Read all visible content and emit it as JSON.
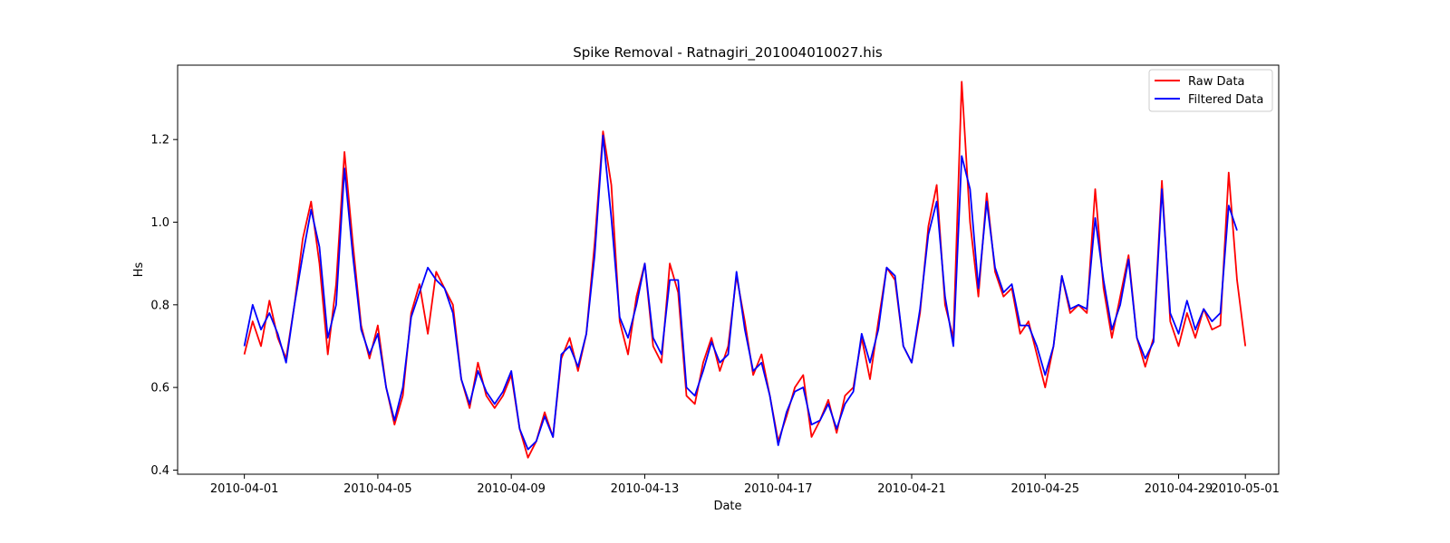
{
  "chart_data": {
    "type": "line",
    "title": "Spike Removal - Ratnagiri_201004010027.his",
    "xlabel": "Date",
    "ylabel": "Hs",
    "xlim": [
      "2010-03-30",
      "2010-05-02"
    ],
    "ylim": [
      0.39,
      1.38
    ],
    "x_ticks": [
      "2010-04-01",
      "2010-04-05",
      "2010-04-09",
      "2010-04-13",
      "2010-04-17",
      "2010-04-21",
      "2010-04-25",
      "2010-04-29",
      "2010-05-01"
    ],
    "y_ticks": [
      "0.4",
      "0.6",
      "0.8",
      "1.0",
      "1.2"
    ],
    "legend_position": "upper-right",
    "grid": false,
    "series": [
      {
        "name": "Raw Data",
        "color": "#ff0000",
        "points": [
          [
            "2010-04-01 00:00",
            0.68
          ],
          [
            "2010-04-01 06:00",
            0.76
          ],
          [
            "2010-04-01 12:00",
            0.7
          ],
          [
            "2010-04-01 18:00",
            0.81
          ],
          [
            "2010-04-02 00:00",
            0.72
          ],
          [
            "2010-04-02 06:00",
            0.67
          ],
          [
            "2010-04-02 12:00",
            0.8
          ],
          [
            "2010-04-02 18:00",
            0.96
          ],
          [
            "2010-04-03 00:00",
            1.05
          ],
          [
            "2010-04-03 06:00",
            0.9
          ],
          [
            "2010-04-03 12:00",
            0.68
          ],
          [
            "2010-04-03 18:00",
            0.85
          ],
          [
            "2010-04-04 00:00",
            1.17
          ],
          [
            "2010-04-04 06:00",
            0.95
          ],
          [
            "2010-04-04 12:00",
            0.75
          ],
          [
            "2010-04-04 18:00",
            0.67
          ],
          [
            "2010-04-05 00:00",
            0.75
          ],
          [
            "2010-04-05 06:00",
            0.6
          ],
          [
            "2010-04-05 12:00",
            0.51
          ],
          [
            "2010-04-05 18:00",
            0.58
          ],
          [
            "2010-04-06 00:00",
            0.78
          ],
          [
            "2010-04-06 06:00",
            0.85
          ],
          [
            "2010-04-06 12:00",
            0.73
          ],
          [
            "2010-04-06 18:00",
            0.88
          ],
          [
            "2010-04-07 00:00",
            0.84
          ],
          [
            "2010-04-07 06:00",
            0.8
          ],
          [
            "2010-04-07 12:00",
            0.62
          ],
          [
            "2010-04-07 18:00",
            0.55
          ],
          [
            "2010-04-08 00:00",
            0.66
          ],
          [
            "2010-04-08 06:00",
            0.58
          ],
          [
            "2010-04-08 12:00",
            0.55
          ],
          [
            "2010-04-08 18:00",
            0.58
          ],
          [
            "2010-04-09 00:00",
            0.63
          ],
          [
            "2010-04-09 06:00",
            0.5
          ],
          [
            "2010-04-09 12:00",
            0.43
          ],
          [
            "2010-04-09 18:00",
            0.47
          ],
          [
            "2010-04-10 00:00",
            0.54
          ],
          [
            "2010-04-10 06:00",
            0.48
          ],
          [
            "2010-04-10 12:00",
            0.67
          ],
          [
            "2010-04-10 18:00",
            0.72
          ],
          [
            "2010-04-11 00:00",
            0.64
          ],
          [
            "2010-04-11 06:00",
            0.73
          ],
          [
            "2010-04-11 12:00",
            0.95
          ],
          [
            "2010-04-11 18:00",
            1.22
          ],
          [
            "2010-04-12 00:00",
            1.09
          ],
          [
            "2010-04-12 06:00",
            0.76
          ],
          [
            "2010-04-12 12:00",
            0.68
          ],
          [
            "2010-04-12 18:00",
            0.82
          ],
          [
            "2010-04-13 00:00",
            0.9
          ],
          [
            "2010-04-13 06:00",
            0.7
          ],
          [
            "2010-04-13 12:00",
            0.66
          ],
          [
            "2010-04-13 18:00",
            0.9
          ],
          [
            "2010-04-14 00:00",
            0.83
          ],
          [
            "2010-04-14 06:00",
            0.58
          ],
          [
            "2010-04-14 12:00",
            0.56
          ],
          [
            "2010-04-14 18:00",
            0.66
          ],
          [
            "2010-04-15 00:00",
            0.72
          ],
          [
            "2010-04-15 06:00",
            0.64
          ],
          [
            "2010-04-15 12:00",
            0.7
          ],
          [
            "2010-04-15 18:00",
            0.87
          ],
          [
            "2010-04-16 00:00",
            0.76
          ],
          [
            "2010-04-16 06:00",
            0.63
          ],
          [
            "2010-04-16 12:00",
            0.68
          ],
          [
            "2010-04-16 18:00",
            0.58
          ],
          [
            "2010-04-17 00:00",
            0.47
          ],
          [
            "2010-04-17 06:00",
            0.53
          ],
          [
            "2010-04-17 12:00",
            0.6
          ],
          [
            "2010-04-17 18:00",
            0.63
          ],
          [
            "2010-04-18 00:00",
            0.48
          ],
          [
            "2010-04-18 06:00",
            0.52
          ],
          [
            "2010-04-18 12:00",
            0.57
          ],
          [
            "2010-04-18 18:00",
            0.49
          ],
          [
            "2010-04-19 00:00",
            0.58
          ],
          [
            "2010-04-19 06:00",
            0.6
          ],
          [
            "2010-04-19 12:00",
            0.72
          ],
          [
            "2010-04-19 18:00",
            0.62
          ],
          [
            "2010-04-20 00:00",
            0.76
          ],
          [
            "2010-04-20 06:00",
            0.89
          ],
          [
            "2010-04-20 12:00",
            0.86
          ],
          [
            "2010-04-20 18:00",
            0.7
          ],
          [
            "2010-04-21 00:00",
            0.66
          ],
          [
            "2010-04-21 06:00",
            0.78
          ],
          [
            "2010-04-21 12:00",
            0.99
          ],
          [
            "2010-04-21 18:00",
            1.09
          ],
          [
            "2010-04-22 00:00",
            0.8
          ],
          [
            "2010-04-22 06:00",
            0.72
          ],
          [
            "2010-04-22 12:00",
            1.34
          ],
          [
            "2010-04-22 18:00",
            1.0
          ],
          [
            "2010-04-23 00:00",
            0.82
          ],
          [
            "2010-04-23 06:00",
            1.07
          ],
          [
            "2010-04-23 12:00",
            0.88
          ],
          [
            "2010-04-23 18:00",
            0.82
          ],
          [
            "2010-04-24 00:00",
            0.84
          ],
          [
            "2010-04-24 06:00",
            0.73
          ],
          [
            "2010-04-24 12:00",
            0.76
          ],
          [
            "2010-04-24 18:00",
            0.68
          ],
          [
            "2010-04-25 00:00",
            0.6
          ],
          [
            "2010-04-25 06:00",
            0.7
          ],
          [
            "2010-04-25 12:00",
            0.87
          ],
          [
            "2010-04-25 18:00",
            0.78
          ],
          [
            "2010-04-26 00:00",
            0.8
          ],
          [
            "2010-04-26 06:00",
            0.78
          ],
          [
            "2010-04-26 12:00",
            1.08
          ],
          [
            "2010-04-26 18:00",
            0.84
          ],
          [
            "2010-04-27 00:00",
            0.72
          ],
          [
            "2010-04-27 06:00",
            0.82
          ],
          [
            "2010-04-27 12:00",
            0.92
          ],
          [
            "2010-04-27 18:00",
            0.72
          ],
          [
            "2010-04-28 00:00",
            0.65
          ],
          [
            "2010-04-28 06:00",
            0.72
          ],
          [
            "2010-04-28 12:00",
            1.1
          ],
          [
            "2010-04-28 18:00",
            0.76
          ],
          [
            "2010-04-29 00:00",
            0.7
          ],
          [
            "2010-04-29 06:00",
            0.78
          ],
          [
            "2010-04-29 12:00",
            0.72
          ],
          [
            "2010-04-29 18:00",
            0.79
          ],
          [
            "2010-04-30 00:00",
            0.74
          ],
          [
            "2010-04-30 06:00",
            0.75
          ],
          [
            "2010-04-30 12:00",
            1.12
          ],
          [
            "2010-04-30 18:00",
            0.86
          ],
          [
            "2010-05-01 00:00",
            0.7
          ]
        ]
      },
      {
        "name": "Filtered Data",
        "color": "#0000ff",
        "points": [
          [
            "2010-04-01 00:00",
            0.7
          ],
          [
            "2010-04-01 06:00",
            0.8
          ],
          [
            "2010-04-01 12:00",
            0.74
          ],
          [
            "2010-04-01 18:00",
            0.78
          ],
          [
            "2010-04-02 00:00",
            0.73
          ],
          [
            "2010-04-02 06:00",
            0.66
          ],
          [
            "2010-04-02 12:00",
            0.8
          ],
          [
            "2010-04-02 18:00",
            0.92
          ],
          [
            "2010-04-03 00:00",
            1.03
          ],
          [
            "2010-04-03 06:00",
            0.94
          ],
          [
            "2010-04-03 12:00",
            0.72
          ],
          [
            "2010-04-03 18:00",
            0.8
          ],
          [
            "2010-04-04 00:00",
            1.13
          ],
          [
            "2010-04-04 06:00",
            0.92
          ],
          [
            "2010-04-04 12:00",
            0.74
          ],
          [
            "2010-04-04 18:00",
            0.68
          ],
          [
            "2010-04-05 00:00",
            0.73
          ],
          [
            "2010-04-05 06:00",
            0.6
          ],
          [
            "2010-04-05 12:00",
            0.52
          ],
          [
            "2010-04-05 18:00",
            0.6
          ],
          [
            "2010-04-06 00:00",
            0.77
          ],
          [
            "2010-04-06 06:00",
            0.83
          ],
          [
            "2010-04-06 12:00",
            0.89
          ],
          [
            "2010-04-06 18:00",
            0.86
          ],
          [
            "2010-04-07 00:00",
            0.84
          ],
          [
            "2010-04-07 06:00",
            0.78
          ],
          [
            "2010-04-07 12:00",
            0.62
          ],
          [
            "2010-04-07 18:00",
            0.56
          ],
          [
            "2010-04-08 00:00",
            0.64
          ],
          [
            "2010-04-08 06:00",
            0.59
          ],
          [
            "2010-04-08 12:00",
            0.56
          ],
          [
            "2010-04-08 18:00",
            0.59
          ],
          [
            "2010-04-09 00:00",
            0.64
          ],
          [
            "2010-04-09 06:00",
            0.5
          ],
          [
            "2010-04-09 12:00",
            0.45
          ],
          [
            "2010-04-09 18:00",
            0.47
          ],
          [
            "2010-04-10 00:00",
            0.53
          ],
          [
            "2010-04-10 06:00",
            0.48
          ],
          [
            "2010-04-10 12:00",
            0.68
          ],
          [
            "2010-04-10 18:00",
            0.7
          ],
          [
            "2010-04-11 00:00",
            0.65
          ],
          [
            "2010-04-11 06:00",
            0.73
          ],
          [
            "2010-04-11 12:00",
            0.92
          ],
          [
            "2010-04-11 18:00",
            1.21
          ],
          [
            "2010-04-12 00:00",
            1.01
          ],
          [
            "2010-04-12 06:00",
            0.77
          ],
          [
            "2010-04-12 12:00",
            0.72
          ],
          [
            "2010-04-12 18:00",
            0.8
          ],
          [
            "2010-04-13 00:00",
            0.9
          ],
          [
            "2010-04-13 06:00",
            0.72
          ],
          [
            "2010-04-13 12:00",
            0.68
          ],
          [
            "2010-04-13 18:00",
            0.86
          ],
          [
            "2010-04-14 00:00",
            0.86
          ],
          [
            "2010-04-14 06:00",
            0.6
          ],
          [
            "2010-04-14 12:00",
            0.58
          ],
          [
            "2010-04-14 18:00",
            0.64
          ],
          [
            "2010-04-15 00:00",
            0.71
          ],
          [
            "2010-04-15 06:00",
            0.66
          ],
          [
            "2010-04-15 12:00",
            0.68
          ],
          [
            "2010-04-15 18:00",
            0.88
          ],
          [
            "2010-04-16 00:00",
            0.74
          ],
          [
            "2010-04-16 06:00",
            0.64
          ],
          [
            "2010-04-16 12:00",
            0.66
          ],
          [
            "2010-04-16 18:00",
            0.58
          ],
          [
            "2010-04-17 00:00",
            0.46
          ],
          [
            "2010-04-17 06:00",
            0.54
          ],
          [
            "2010-04-17 12:00",
            0.59
          ],
          [
            "2010-04-17 18:00",
            0.6
          ],
          [
            "2010-04-18 00:00",
            0.51
          ],
          [
            "2010-04-18 06:00",
            0.52
          ],
          [
            "2010-04-18 12:00",
            0.56
          ],
          [
            "2010-04-18 18:00",
            0.5
          ],
          [
            "2010-04-19 00:00",
            0.56
          ],
          [
            "2010-04-19 06:00",
            0.59
          ],
          [
            "2010-04-19 12:00",
            0.73
          ],
          [
            "2010-04-19 18:00",
            0.66
          ],
          [
            "2010-04-20 00:00",
            0.74
          ],
          [
            "2010-04-20 06:00",
            0.89
          ],
          [
            "2010-04-20 12:00",
            0.87
          ],
          [
            "2010-04-20 18:00",
            0.7
          ],
          [
            "2010-04-21 00:00",
            0.66
          ],
          [
            "2010-04-21 06:00",
            0.79
          ],
          [
            "2010-04-21 12:00",
            0.97
          ],
          [
            "2010-04-21 18:00",
            1.05
          ],
          [
            "2010-04-22 00:00",
            0.82
          ],
          [
            "2010-04-22 06:00",
            0.7
          ],
          [
            "2010-04-22 12:00",
            1.16
          ],
          [
            "2010-04-22 18:00",
            1.08
          ],
          [
            "2010-04-23 00:00",
            0.84
          ],
          [
            "2010-04-23 06:00",
            1.05
          ],
          [
            "2010-04-23 12:00",
            0.89
          ],
          [
            "2010-04-23 18:00",
            0.83
          ],
          [
            "2010-04-24 00:00",
            0.85
          ],
          [
            "2010-04-24 06:00",
            0.75
          ],
          [
            "2010-04-24 12:00",
            0.75
          ],
          [
            "2010-04-24 18:00",
            0.7
          ],
          [
            "2010-04-25 00:00",
            0.63
          ],
          [
            "2010-04-25 06:00",
            0.7
          ],
          [
            "2010-04-25 12:00",
            0.87
          ],
          [
            "2010-04-25 18:00",
            0.79
          ],
          [
            "2010-04-26 00:00",
            0.8
          ],
          [
            "2010-04-26 06:00",
            0.79
          ],
          [
            "2010-04-26 12:00",
            1.01
          ],
          [
            "2010-04-26 18:00",
            0.86
          ],
          [
            "2010-04-27 00:00",
            0.74
          ],
          [
            "2010-04-27 06:00",
            0.8
          ],
          [
            "2010-04-27 12:00",
            0.91
          ],
          [
            "2010-04-27 18:00",
            0.72
          ],
          [
            "2010-04-28 00:00",
            0.67
          ],
          [
            "2010-04-28 06:00",
            0.71
          ],
          [
            "2010-04-28 12:00",
            1.08
          ],
          [
            "2010-04-28 18:00",
            0.78
          ],
          [
            "2010-04-29 00:00",
            0.73
          ],
          [
            "2010-04-29 06:00",
            0.81
          ],
          [
            "2010-04-29 12:00",
            0.74
          ],
          [
            "2010-04-29 18:00",
            0.79
          ],
          [
            "2010-04-30 00:00",
            0.76
          ],
          [
            "2010-04-30 06:00",
            0.78
          ],
          [
            "2010-04-30 12:00",
            1.04
          ],
          [
            "2010-04-30 18:00",
            0.98
          ]
        ]
      }
    ]
  }
}
